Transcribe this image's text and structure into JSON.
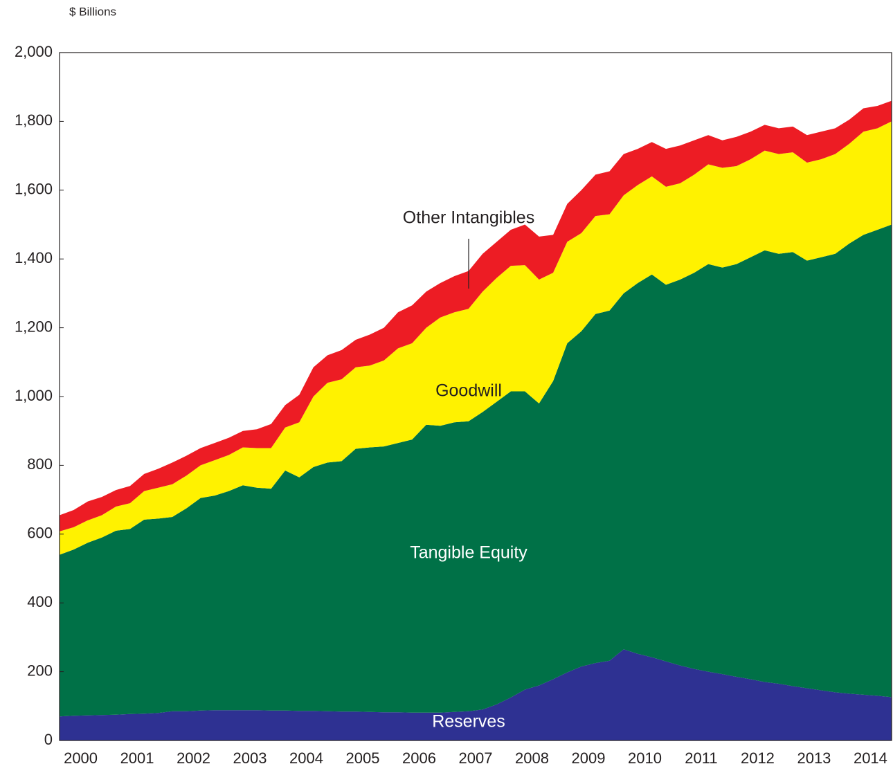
{
  "chart_data": {
    "type": "stacked_area",
    "y_axis_label": "$ Billions",
    "categories": [
      "2000",
      null,
      null,
      null,
      "2001",
      null,
      null,
      null,
      "2002",
      null,
      null,
      null,
      "2003",
      null,
      null,
      null,
      "2004",
      null,
      null,
      null,
      "2005",
      null,
      null,
      null,
      "2006",
      null,
      null,
      null,
      "2007",
      null,
      null,
      null,
      "2008",
      null,
      null,
      null,
      "2009",
      null,
      null,
      null,
      "2010",
      null,
      null,
      null,
      "2011",
      null,
      null,
      null,
      "2012",
      null,
      null,
      null,
      "2013",
      null,
      null,
      null,
      "2014",
      null,
      null,
      null
    ],
    "series": [
      {
        "name": "Reserves",
        "color": "#2e3192",
        "values": [
          70,
          72,
          73,
          74,
          75,
          77,
          78,
          80,
          85,
          85,
          87,
          88,
          88,
          88,
          88,
          87,
          87,
          86,
          86,
          85,
          84,
          84,
          83,
          82,
          82,
          81,
          81,
          81,
          83,
          85,
          90,
          105,
          125,
          148,
          160,
          178,
          198,
          215,
          225,
          232,
          265,
          252,
          242,
          230,
          218,
          208,
          200,
          193,
          185,
          178,
          170,
          165,
          158,
          152,
          146,
          140,
          136,
          133,
          130,
          126
        ]
      },
      {
        "name": "Tangible Equity",
        "color": "#007147",
        "values": [
          470,
          483,
          502,
          516,
          535,
          538,
          564,
          565,
          565,
          590,
          618,
          624,
          637,
          654,
          647,
          645,
          698,
          679,
          709,
          723,
          728,
          764,
          769,
          773,
          783,
          794,
          837,
          834,
          842,
          843,
          865,
          880,
          890,
          867,
          820,
          867,
          957,
          975,
          1015,
          1018,
          1035,
          1078,
          1113,
          1095,
          1122,
          1152,
          1185,
          1182,
          1200,
          1227,
          1255,
          1250,
          1262,
          1243,
          1259,
          1275,
          1309,
          1337,
          1355,
          1374
        ]
      },
      {
        "name": "Goodwill",
        "color": "#fff200",
        "values": [
          68,
          65,
          65,
          65,
          70,
          75,
          83,
          90,
          95,
          95,
          95,
          103,
          105,
          110,
          115,
          118,
          125,
          160,
          205,
          232,
          238,
          237,
          238,
          250,
          275,
          280,
          282,
          315,
          320,
          327,
          350,
          360,
          365,
          367,
          360,
          315,
          295,
          285,
          285,
          280,
          285,
          285,
          285,
          285,
          280,
          285,
          290,
          290,
          285,
          285,
          290,
          290,
          290,
          285,
          285,
          290,
          290,
          300,
          295,
          300
        ]
      },
      {
        "name": "Other Intangibles",
        "color": "#ed1c24",
        "values": [
          47,
          50,
          55,
          53,
          48,
          50,
          50,
          55,
          63,
          58,
          50,
          50,
          50,
          48,
          55,
          70,
          65,
          80,
          85,
          80,
          85,
          80,
          90,
          95,
          105,
          110,
          105,
          100,
          105,
          110,
          110,
          105,
          105,
          118,
          125,
          110,
          110,
          125,
          120,
          125,
          120,
          105,
          100,
          110,
          110,
          100,
          85,
          80,
          85,
          80,
          75,
          75,
          75,
          80,
          80,
          75,
          70,
          68,
          65,
          60
        ]
      }
    ],
    "ylim": [
      0,
      2000
    ],
    "yticks": [
      0,
      200,
      400,
      600,
      800,
      {
        "value": 1000,
        "label": "1,000"
      },
      {
        "value": 1200,
        "label": "1,200"
      },
      {
        "value": 1400,
        "label": "1,400"
      },
      {
        "value": 1600,
        "label": "1,600"
      },
      {
        "value": 1800,
        "label": "1,800"
      },
      {
        "value": 2000,
        "label": "2,000"
      }
    ],
    "grid": false
  }
}
